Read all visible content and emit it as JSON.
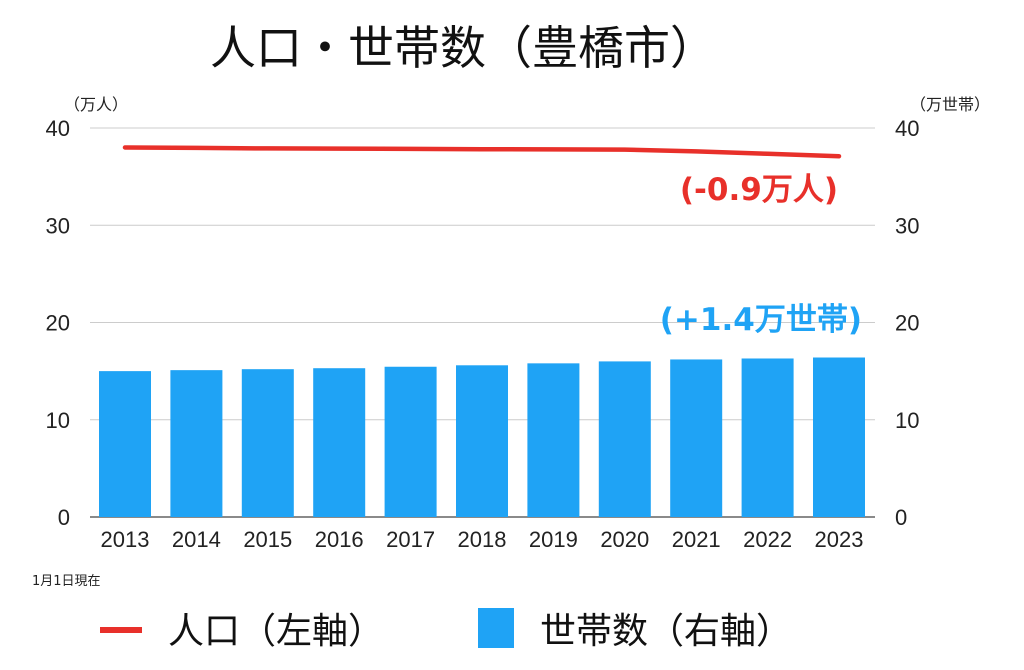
{
  "chart_data": {
    "type": "bar",
    "title": "人口・世帯数（豊橋市）",
    "note": "1月1日現在",
    "categories": [
      "2013",
      "2014",
      "2015",
      "2016",
      "2017",
      "2018",
      "2019",
      "2020",
      "2021",
      "2022",
      "2023"
    ],
    "y_left": {
      "unit": "（万人）",
      "range": [
        0,
        40
      ],
      "ticks": [
        "0",
        "10",
        "20",
        "30",
        "40"
      ]
    },
    "y_right": {
      "unit": "（万世帯）",
      "range": [
        0,
        40
      ],
      "ticks": [
        "0",
        "10",
        "20",
        "30",
        "40"
      ]
    },
    "grid": true,
    "series": [
      {
        "name": "人口（左軸）",
        "type": "line",
        "axis": "left",
        "color": "#e8302a",
        "values": [
          38.0,
          37.95,
          37.9,
          37.88,
          37.85,
          37.82,
          37.8,
          37.78,
          37.6,
          37.35,
          37.1
        ]
      },
      {
        "name": "世帯数（右軸）",
        "type": "bar",
        "axis": "right",
        "color": "#1fa3f5",
        "values": [
          15.0,
          15.1,
          15.2,
          15.3,
          15.45,
          15.6,
          15.8,
          16.0,
          16.2,
          16.3,
          16.4
        ]
      }
    ],
    "annotations": [
      {
        "text": "(-0.9万人)",
        "color": "#e8302a"
      },
      {
        "text": "(+1.4万世帯)",
        "color": "#1fa3f5"
      }
    ],
    "legend_position": "bottom"
  }
}
